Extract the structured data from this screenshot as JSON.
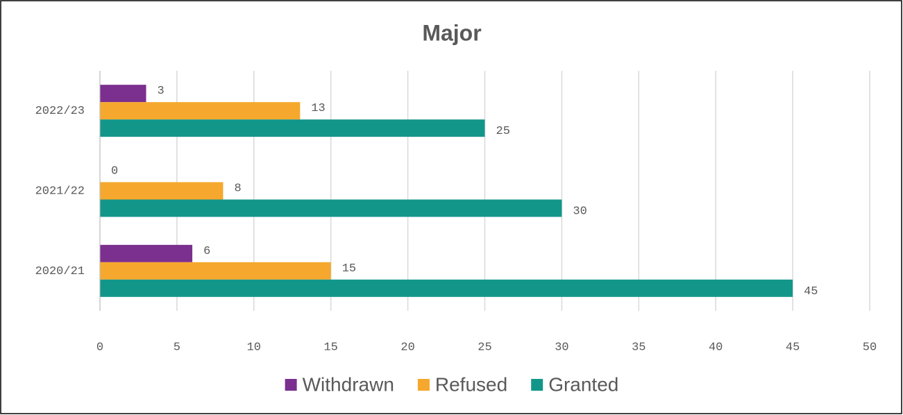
{
  "chart_data": {
    "type": "bar",
    "orientation": "horizontal",
    "title": "Major",
    "categories": [
      "2022/23",
      "2021/22",
      "2020/21"
    ],
    "series": [
      {
        "name": "Withdrawn",
        "color": "#7b2f8e",
        "values": [
          3,
          0,
          6
        ]
      },
      {
        "name": "Refused",
        "color": "#f5a82d",
        "values": [
          13,
          8,
          15
        ]
      },
      {
        "name": "Granted",
        "color": "#13968a",
        "values": [
          25,
          30,
          45
        ]
      }
    ],
    "xlim": [
      0,
      50
    ],
    "xticks": [
      0,
      5,
      10,
      15,
      20,
      25,
      30,
      35,
      40,
      45,
      50
    ],
    "grid": true,
    "legend": "bottom"
  }
}
